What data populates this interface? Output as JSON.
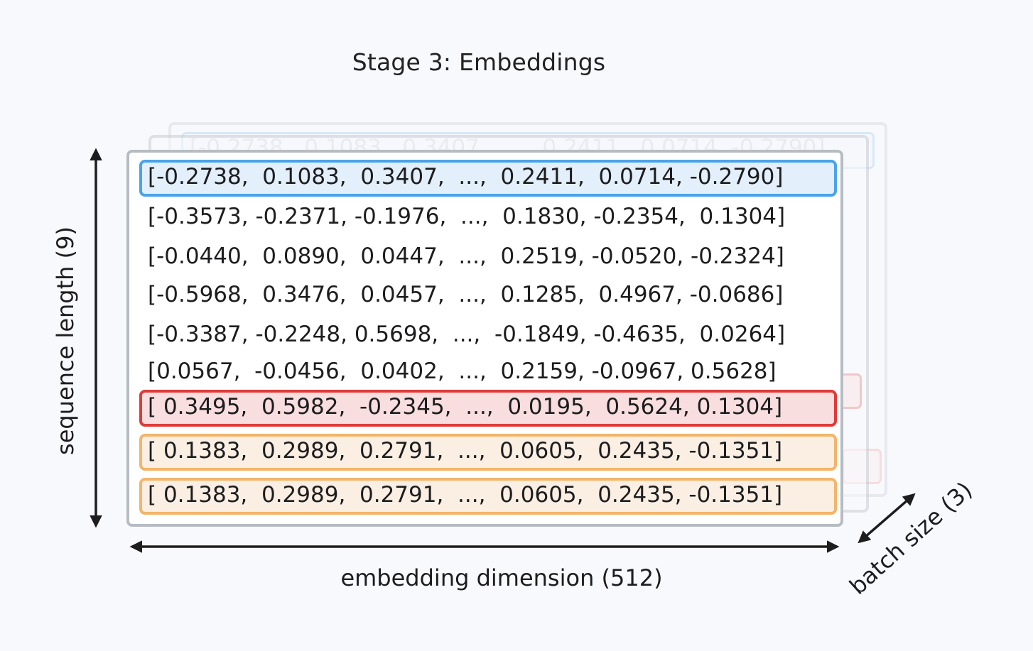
{
  "title": "Stage 3: Embeddings",
  "labels": {
    "sequence_length": "sequence length (9)",
    "embedding_dimension": "embedding dimension (512)",
    "batch_size": "batch size (3)"
  },
  "rows": [
    {
      "text": "[-0.2738,  0.1083,  0.3407,  ...,  0.2411,  0.0714, -0.2790]",
      "highlight": "blue"
    },
    {
      "text": "[-0.3573, -0.2371, -0.1976,  ...,  0.1830, -0.2354,  0.1304]",
      "highlight": "none"
    },
    {
      "text": "[-0.0440,  0.0890,  0.0447,  ...,  0.2519, -0.0520, -0.2324]",
      "highlight": "none"
    },
    {
      "text": "[-0.5968,  0.3476,  0.0457,  ...,  0.1285,  0.4967, -0.0686]",
      "highlight": "none"
    },
    {
      "text": "[-0.3387, -0.2248, 0.5698,  ...,  -0.1849, -0.4635,  0.0264]",
      "highlight": "none"
    },
    {
      "text": "[0.0567,  -0.0456,  0.0402,  ...,  0.2159, -0.0967, 0.5628]",
      "highlight": "none"
    },
    {
      "text": "[ 0.3495,  0.5982,  -0.2345,  ...,  0.0195,  0.5624, 0.1304]",
      "highlight": "red"
    },
    {
      "text": "[ 0.1383,  0.2989,  0.2791,  ...,  0.0605,  0.2435, -0.1351]",
      "highlight": "orange"
    },
    {
      "text": "[ 0.1383,  0.2989,  0.2791,  ...,  0.0605,  0.2435, -0.1351]",
      "highlight": "orange"
    }
  ],
  "colors": {
    "blue_highlight": "#4aa3ea",
    "red_highlight": "#e03a3a",
    "orange_highlight": "#f4b46a"
  }
}
